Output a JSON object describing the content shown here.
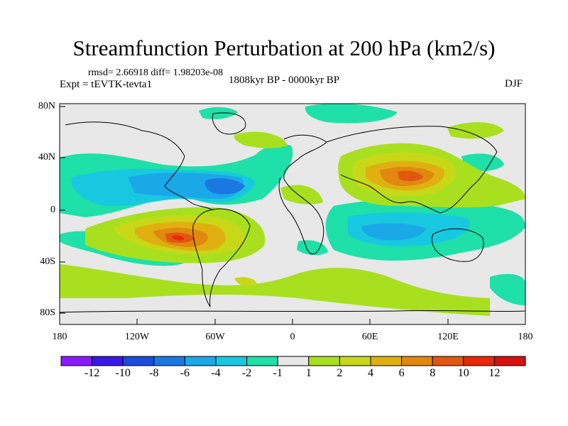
{
  "title": "Streamfunction Perturbation at 200 hPa (km2/s)",
  "stats_line": "rmsd= 2.66918 diff= 1.98203e-08",
  "experiment": "Expt = tEVTK-tevta1",
  "period": "1808kyr BP - 0000kyr BP",
  "season": "DJF",
  "lat_ticks": [
    "80N",
    "40N",
    "0",
    "40S",
    "80S"
  ],
  "lon_ticks": [
    "180",
    "120W",
    "60W",
    "0",
    "60E",
    "120E",
    "180"
  ],
  "colorbar": {
    "labels": [
      "-12",
      "-10",
      "-8",
      "-6",
      "-4",
      "-2",
      "-1",
      "1",
      "2",
      "4",
      "6",
      "8",
      "10",
      "12"
    ],
    "colors": [
      "#8a1aff",
      "#3a18e8",
      "#1a4cdc",
      "#1a78e0",
      "#1aa8e8",
      "#18c8e0",
      "#1ee0a8",
      "#e8e8e8",
      "#a8e020",
      "#c8d818",
      "#e0b010",
      "#e08810",
      "#e05810",
      "#e82808",
      "#d81010"
    ]
  }
}
